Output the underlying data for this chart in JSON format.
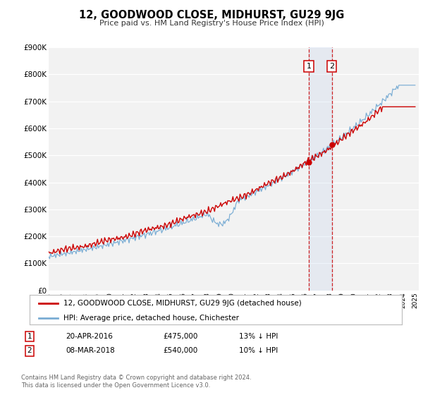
{
  "title": "12, GOODWOOD CLOSE, MIDHURST, GU29 9JG",
  "subtitle": "Price paid vs. HM Land Registry's House Price Index (HPI)",
  "background_color": "#ffffff",
  "plot_bg_color": "#f2f2f2",
  "grid_color": "#ffffff",
  "red_color": "#cc0000",
  "blue_color": "#7aadd4",
  "ylim": [
    0,
    900000
  ],
  "yticks": [
    0,
    100000,
    200000,
    300000,
    400000,
    500000,
    600000,
    700000,
    800000,
    900000
  ],
  "ytick_labels": [
    "£0",
    "£100K",
    "£200K",
    "£300K",
    "£400K",
    "£500K",
    "£600K",
    "£700K",
    "£800K",
    "£900K"
  ],
  "legend_label_red": "12, GOODWOOD CLOSE, MIDHURST, GU29 9JG (detached house)",
  "legend_label_blue": "HPI: Average price, detached house, Chichester",
  "marker1_date": 2016.3,
  "marker1_price": 475000,
  "marker1_label": "20-APR-2016",
  "marker1_amount": "£475,000",
  "marker1_pct": "13% ↓ HPI",
  "marker2_date": 2018.18,
  "marker2_price": 540000,
  "marker2_label": "08-MAR-2018",
  "marker2_amount": "£540,000",
  "marker2_pct": "10% ↓ HPI",
  "footer1": "Contains HM Land Registry data © Crown copyright and database right 2024.",
  "footer2": "This data is licensed under the Open Government Licence v3.0."
}
